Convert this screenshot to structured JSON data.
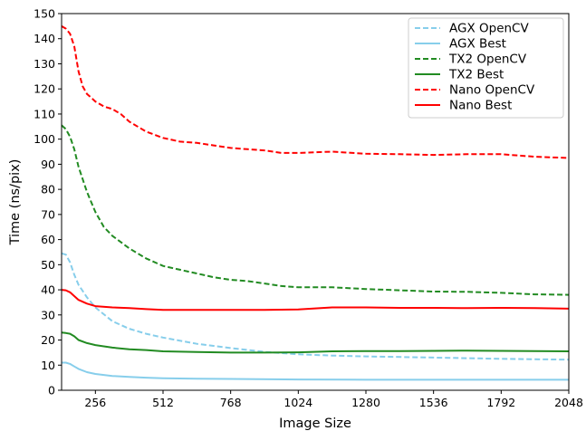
{
  "chart_data": {
    "type": "line",
    "title": "",
    "xlabel": "Image Size",
    "ylabel": "Time (ns/pix)",
    "xlim": [
      128,
      2048
    ],
    "ylim": [
      0,
      150
    ],
    "xticks": [
      256,
      512,
      768,
      1024,
      1280,
      1536,
      1792,
      2048
    ],
    "yticks": [
      0,
      10,
      20,
      30,
      40,
      50,
      60,
      70,
      80,
      90,
      100,
      110,
      120,
      130,
      140,
      150
    ],
    "grid": false,
    "legend_position": "top-right",
    "series": [
      {
        "name": "AGX OpenCV",
        "color": "#87ceeb",
        "style": "dashed",
        "points": [
          [
            128,
            54.5
          ],
          [
            144,
            54
          ],
          [
            160,
            51
          ],
          [
            176,
            46
          ],
          [
            192,
            42
          ],
          [
            224,
            37
          ],
          [
            256,
            33
          ],
          [
            320,
            27.5
          ],
          [
            384,
            24.5
          ],
          [
            448,
            22.5
          ],
          [
            512,
            21
          ],
          [
            640,
            18.5
          ],
          [
            768,
            16.8
          ],
          [
            896,
            15.3
          ],
          [
            1024,
            14.3
          ],
          [
            1152,
            13.8
          ],
          [
            1280,
            13.5
          ],
          [
            1536,
            13
          ],
          [
            1792,
            12.5
          ],
          [
            2048,
            12.2
          ]
        ]
      },
      {
        "name": "AGX Best",
        "color": "#87ceeb",
        "style": "solid",
        "points": [
          [
            128,
            11
          ],
          [
            144,
            11
          ],
          [
            160,
            10.5
          ],
          [
            176,
            9.5
          ],
          [
            192,
            8.5
          ],
          [
            224,
            7.2
          ],
          [
            256,
            6.5
          ],
          [
            320,
            5.7
          ],
          [
            384,
            5.3
          ],
          [
            448,
            5
          ],
          [
            512,
            4.8
          ],
          [
            640,
            4.6
          ],
          [
            768,
            4.5
          ],
          [
            1024,
            4.3
          ],
          [
            1280,
            4.2
          ],
          [
            1536,
            4.2
          ],
          [
            1792,
            4.2
          ],
          [
            2048,
            4.2
          ]
        ]
      },
      {
        "name": "TX2 OpenCV",
        "color": "#228b22",
        "style": "dashed",
        "points": [
          [
            128,
            105.5
          ],
          [
            144,
            104
          ],
          [
            160,
            101
          ],
          [
            176,
            96
          ],
          [
            192,
            89
          ],
          [
            224,
            79
          ],
          [
            256,
            71
          ],
          [
            288,
            65
          ],
          [
            320,
            61.5
          ],
          [
            384,
            56.5
          ],
          [
            448,
            52.5
          ],
          [
            512,
            49.5
          ],
          [
            576,
            48
          ],
          [
            640,
            46.5
          ],
          [
            704,
            45
          ],
          [
            768,
            44
          ],
          [
            832,
            43.5
          ],
          [
            896,
            42.5
          ],
          [
            960,
            41.5
          ],
          [
            1024,
            41
          ],
          [
            1152,
            41
          ],
          [
            1280,
            40.3
          ],
          [
            1408,
            39.8
          ],
          [
            1536,
            39.3
          ],
          [
            1664,
            39.2
          ],
          [
            1792,
            38.8
          ],
          [
            1920,
            38.2
          ],
          [
            2048,
            38
          ]
        ]
      },
      {
        "name": "TX2 Best",
        "color": "#228b22",
        "style": "solid",
        "points": [
          [
            128,
            23
          ],
          [
            144,
            22.8
          ],
          [
            160,
            22.5
          ],
          [
            176,
            21.5
          ],
          [
            192,
            20
          ],
          [
            224,
            18.8
          ],
          [
            256,
            18
          ],
          [
            320,
            17
          ],
          [
            384,
            16.3
          ],
          [
            448,
            16
          ],
          [
            512,
            15.5
          ],
          [
            640,
            15.2
          ],
          [
            768,
            15
          ],
          [
            896,
            15
          ],
          [
            1024,
            15.1
          ],
          [
            1152,
            15.5
          ],
          [
            1280,
            15.6
          ],
          [
            1408,
            15.6
          ],
          [
            1536,
            15.7
          ],
          [
            1664,
            15.8
          ],
          [
            1792,
            15.7
          ],
          [
            1920,
            15.6
          ],
          [
            2048,
            15.5
          ]
        ]
      },
      {
        "name": "Nano OpenCV",
        "color": "#ff0000",
        "style": "dashed",
        "points": [
          [
            128,
            145
          ],
          [
            144,
            144
          ],
          [
            160,
            142
          ],
          [
            176,
            137
          ],
          [
            192,
            127
          ],
          [
            208,
            121
          ],
          [
            224,
            118
          ],
          [
            256,
            115
          ],
          [
            288,
            113
          ],
          [
            320,
            112
          ],
          [
            352,
            110
          ],
          [
            384,
            107
          ],
          [
            416,
            105
          ],
          [
            448,
            103
          ],
          [
            512,
            100.5
          ],
          [
            576,
            99
          ],
          [
            640,
            98.5
          ],
          [
            704,
            97.5
          ],
          [
            768,
            96.5
          ],
          [
            832,
            96
          ],
          [
            896,
            95.5
          ],
          [
            960,
            94.5
          ],
          [
            1024,
            94.5
          ],
          [
            1152,
            95
          ],
          [
            1280,
            94.2
          ],
          [
            1408,
            94
          ],
          [
            1536,
            93.7
          ],
          [
            1664,
            94
          ],
          [
            1792,
            94
          ],
          [
            1920,
            93
          ],
          [
            2048,
            92.5
          ]
        ]
      },
      {
        "name": "Nano Best",
        "color": "#ff0000",
        "style": "solid",
        "points": [
          [
            128,
            40
          ],
          [
            144,
            39.8
          ],
          [
            160,
            39
          ],
          [
            176,
            37.5
          ],
          [
            192,
            36
          ],
          [
            224,
            34.5
          ],
          [
            256,
            33.5
          ],
          [
            320,
            33
          ],
          [
            384,
            32.7
          ],
          [
            448,
            32.3
          ],
          [
            512,
            32
          ],
          [
            640,
            32
          ],
          [
            768,
            32
          ],
          [
            896,
            32
          ],
          [
            1024,
            32.2
          ],
          [
            1152,
            33
          ],
          [
            1280,
            33
          ],
          [
            1408,
            32.8
          ],
          [
            1536,
            32.8
          ],
          [
            1664,
            32.7
          ],
          [
            1792,
            32.8
          ],
          [
            1920,
            32.7
          ],
          [
            2048,
            32.5
          ]
        ]
      }
    ]
  }
}
